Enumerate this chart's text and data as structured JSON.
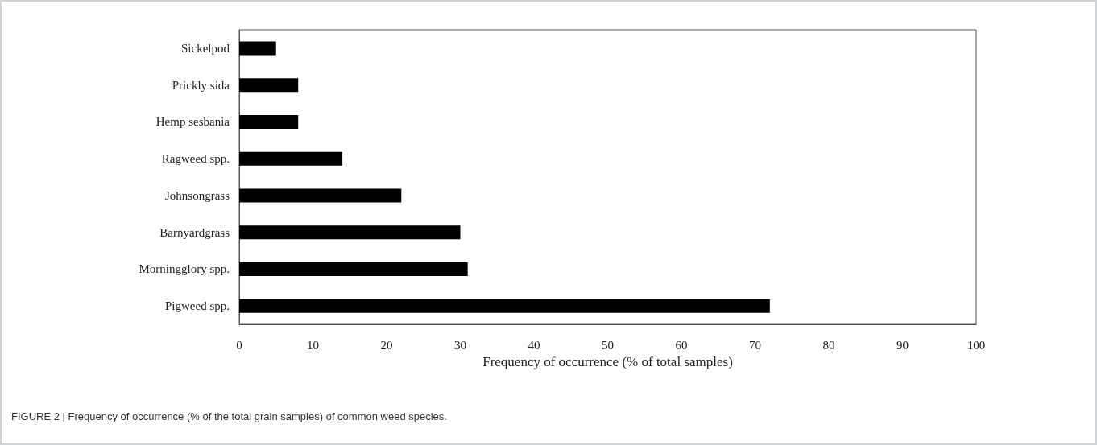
{
  "chart_data": {
    "type": "bar",
    "orientation": "horizontal",
    "categories": [
      "Sickelpod",
      "Prickly sida",
      "Hemp sesbania",
      "Ragweed spp.",
      "Johnsongrass",
      "Barnyardgrass",
      "Morningglory spp.",
      "Pigweed spp."
    ],
    "values": [
      5,
      8,
      8,
      14,
      22,
      30,
      31,
      72
    ],
    "color": "#000000",
    "xlim": [
      0,
      100
    ],
    "xticks": [
      0,
      10,
      20,
      30,
      40,
      50,
      60,
      70,
      80,
      90,
      100
    ],
    "xlabel": "Frequency of occurrence (% of total samples)",
    "annotations": [
      "FIGURE 2 | Frequency of occurrence (% of the total grain samples) of common weed species."
    ],
    "grid": false
  }
}
